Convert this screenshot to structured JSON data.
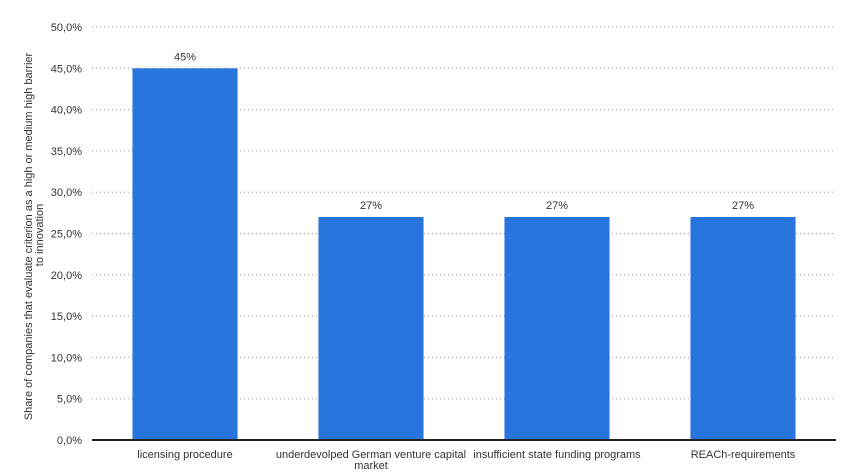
{
  "chart_data": {
    "type": "bar",
    "categories": [
      [
        "licensing procedure"
      ],
      [
        "underdevolped German venture capital",
        "market"
      ],
      [
        "insufficient state funding programs"
      ],
      [
        "REACh-requirements"
      ]
    ],
    "values": [
      45,
      27,
      27,
      27
    ],
    "data_labels": [
      "45%",
      "27%",
      "27%",
      "27%"
    ],
    "ylabel": [
      "Share of companies that evaluate criterion as a high or medium high barrier",
      "to innovation"
    ],
    "ylim": [
      0,
      50
    ],
    "yticks": [
      0,
      5,
      10,
      15,
      20,
      25,
      30,
      35,
      40,
      45,
      50
    ],
    "ytick_labels": [
      "0,0%",
      "5,0%",
      "10,0%",
      "15,0%",
      "20,0%",
      "25,0%",
      "30,0%",
      "35,0%",
      "40,0%",
      "45,0%",
      "50,0%"
    ],
    "grid": true,
    "legend": "none",
    "bar_color": "#2775dd"
  }
}
